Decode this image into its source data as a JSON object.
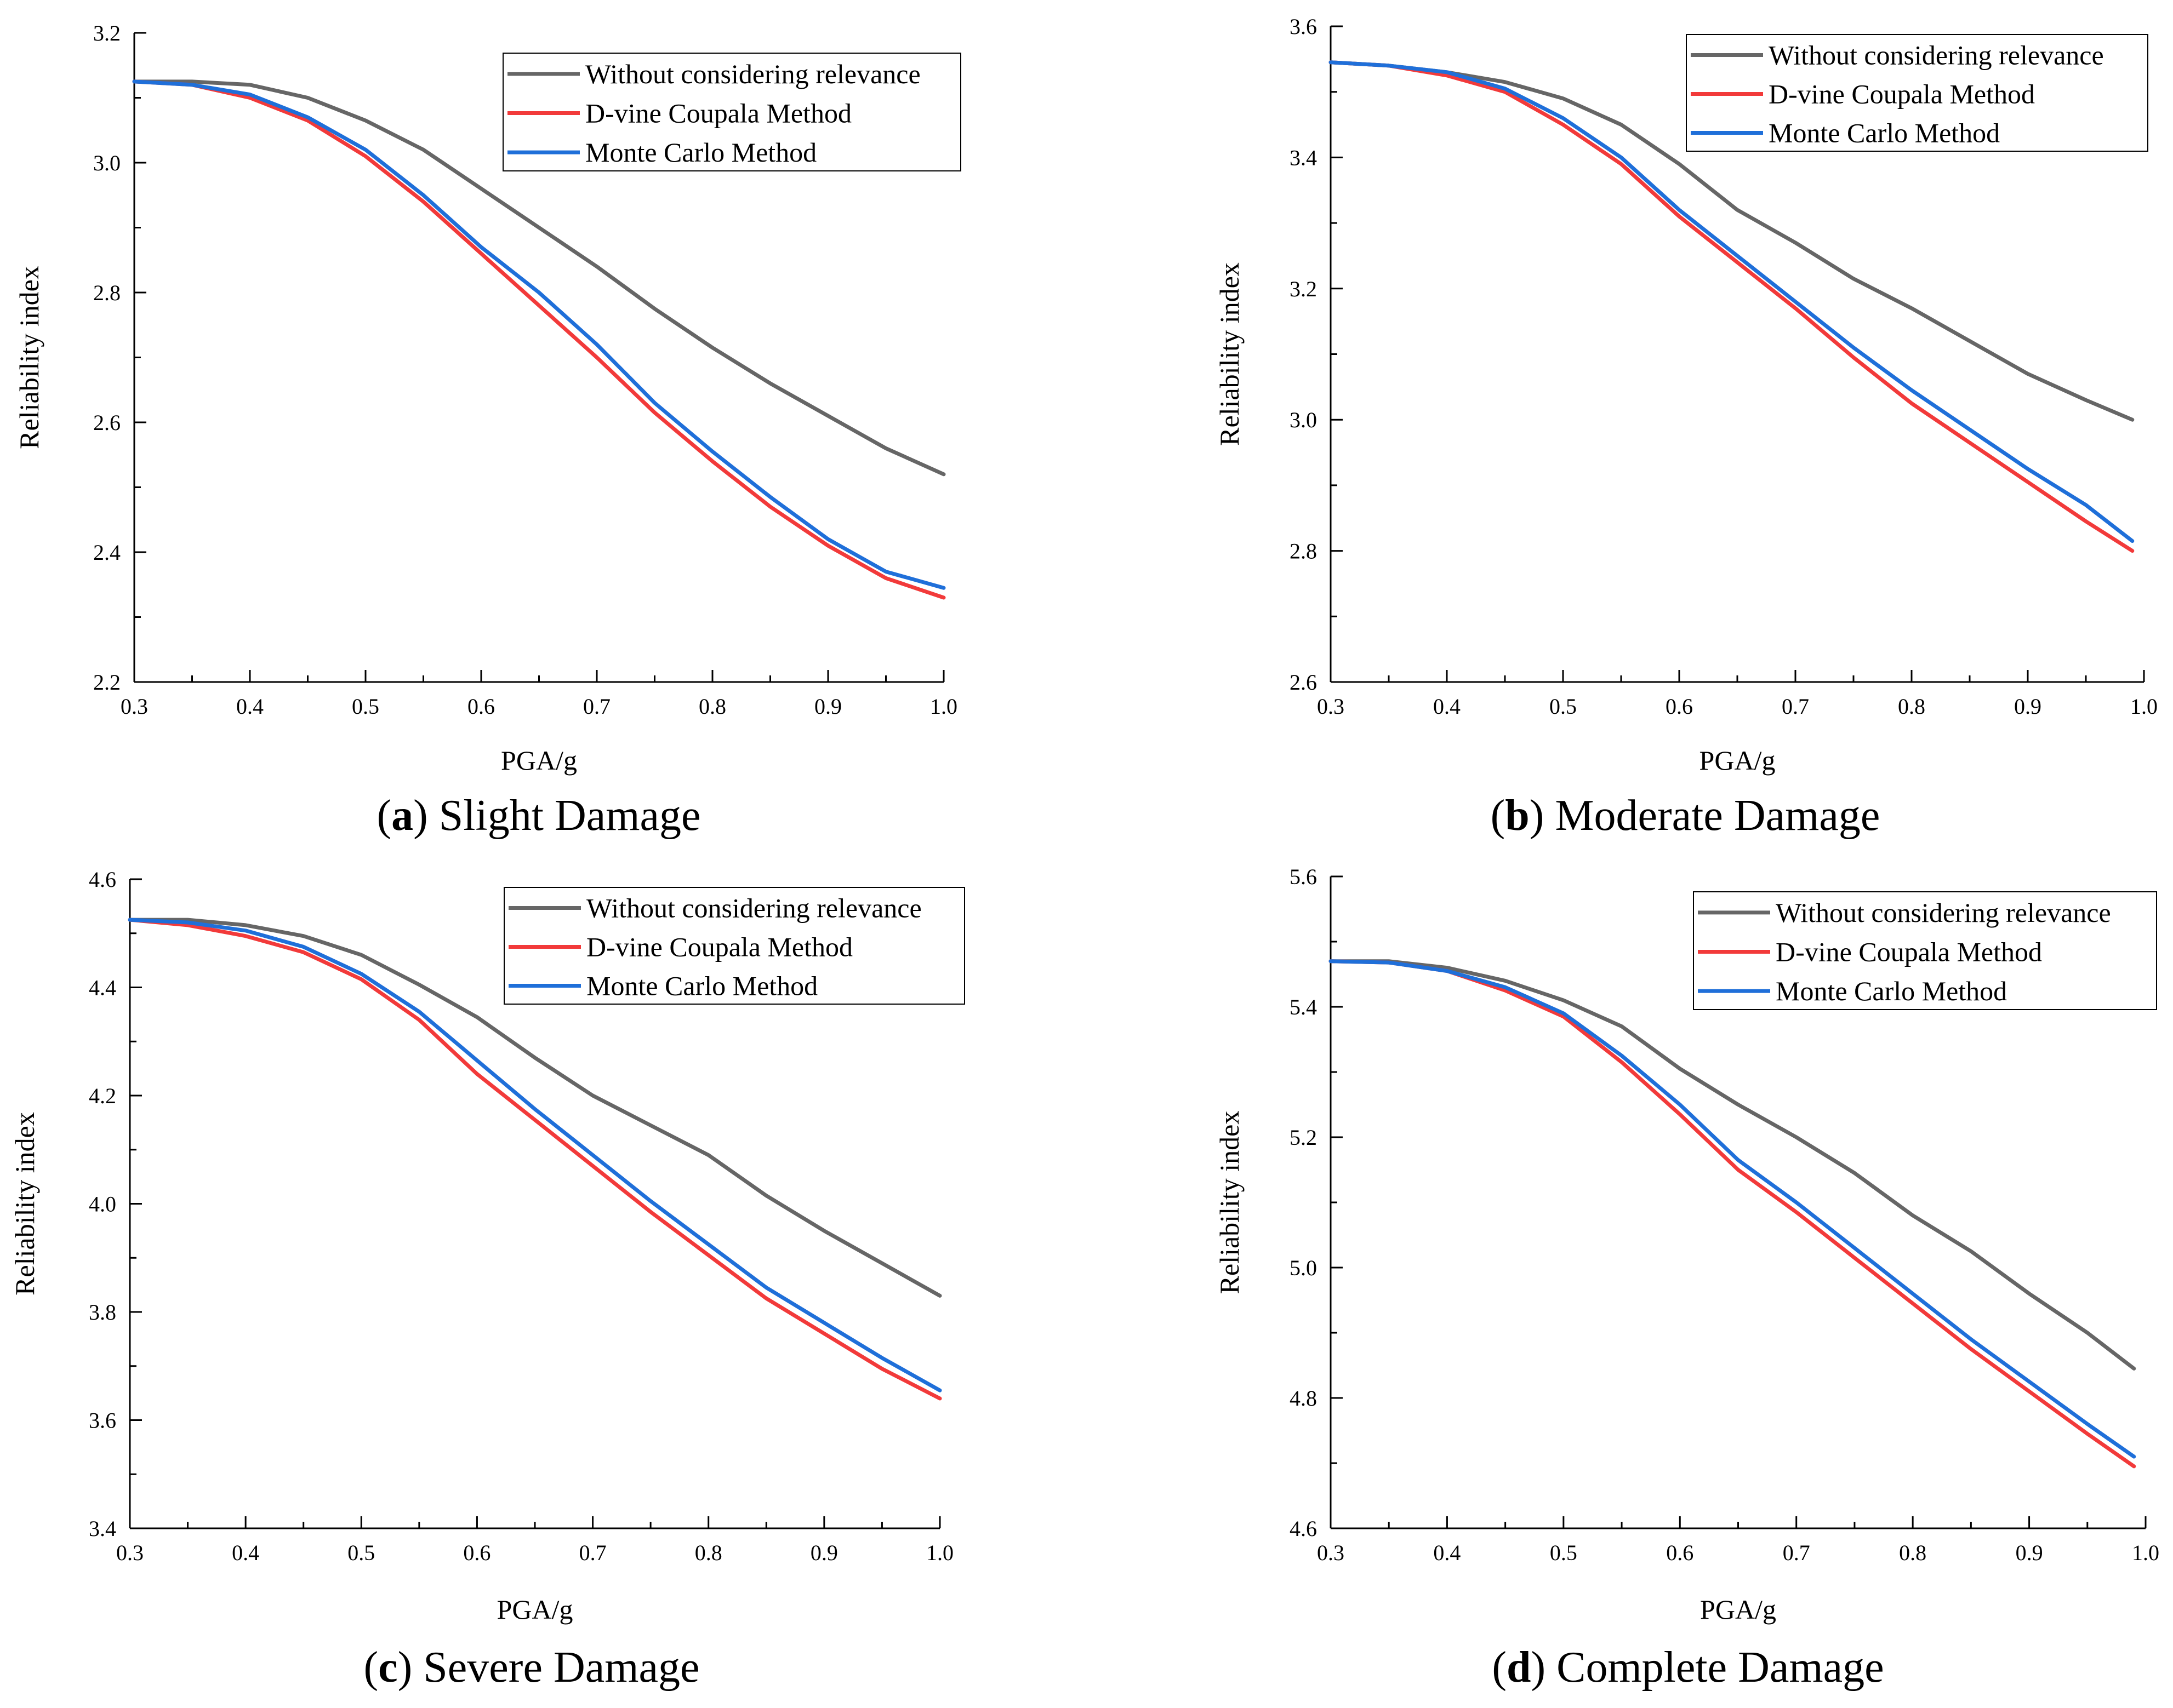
{
  "colors": {
    "without": "#666666",
    "dvine": "#f23a3a",
    "monte": "#1f6fd9",
    "axis": "#000000"
  },
  "figure": {
    "panels_count": 4
  },
  "chart_data": [
    {
      "type": "line",
      "caption_letter": "a",
      "caption_text": "Slight Damage",
      "xlabel": "PGA/g",
      "ylabel": "Reliability index",
      "xlim": [
        0.3,
        1.0
      ],
      "ylim": [
        2.2,
        3.2
      ],
      "xticks": [
        0.3,
        0.4,
        0.5,
        0.6,
        0.7,
        0.8,
        0.9,
        1.0
      ],
      "xtick_labels": [
        "0.3",
        "0.4",
        "0.5",
        "0.6",
        "0.7",
        "0.8",
        "0.9",
        "1.0"
      ],
      "yticks": [
        2.2,
        2.4,
        2.6,
        2.8,
        3.0,
        3.2
      ],
      "ytick_labels": [
        "2.2",
        "2.4",
        "2.6",
        "2.8",
        "3.0",
        "3.2"
      ],
      "legend_position": "top-right",
      "x": [
        0.3,
        0.35,
        0.4,
        0.45,
        0.5,
        0.55,
        0.6,
        0.65,
        0.7,
        0.75,
        0.8,
        0.85,
        0.9,
        0.95,
        1.0
      ],
      "series": [
        {
          "name": "Without considering relevance",
          "color_key": "without",
          "values": [
            3.125,
            3.125,
            3.12,
            3.1,
            3.065,
            3.02,
            2.96,
            2.9,
            2.84,
            2.775,
            2.715,
            2.66,
            2.61,
            2.56,
            2.52
          ]
        },
        {
          "name": "D-vine Coupala Method",
          "color_key": "dvine",
          "values": [
            3.125,
            3.12,
            3.1,
            3.065,
            3.01,
            2.94,
            2.86,
            2.78,
            2.7,
            2.615,
            2.54,
            2.47,
            2.41,
            2.36,
            2.33
          ]
        },
        {
          "name": "Monte Carlo Method",
          "color_key": "monte",
          "values": [
            3.125,
            3.12,
            3.105,
            3.07,
            3.02,
            2.95,
            2.87,
            2.8,
            2.72,
            2.63,
            2.555,
            2.485,
            2.42,
            2.37,
            2.345
          ]
        }
      ]
    },
    {
      "type": "line",
      "caption_letter": "b",
      "caption_text": "Moderate Damage",
      "xlabel": "PGA/g",
      "ylabel": "Reliability index",
      "xlim": [
        0.3,
        1.0
      ],
      "ylim": [
        2.6,
        3.6
      ],
      "xticks": [
        0.3,
        0.4,
        0.5,
        0.6,
        0.7,
        0.8,
        0.9,
        1.0
      ],
      "xtick_labels": [
        "0.3",
        "0.4",
        "0.5",
        "0.6",
        "0.7",
        "0.8",
        "0.9",
        "1.0"
      ],
      "yticks": [
        2.6,
        2.8,
        3.0,
        3.2,
        3.4,
        3.6
      ],
      "ytick_labels": [
        "2.6",
        "2.8",
        "3.0",
        "3.2",
        "3.4",
        "3.6"
      ],
      "legend_position": "top-right",
      "x": [
        0.3,
        0.35,
        0.4,
        0.45,
        0.5,
        0.55,
        0.6,
        0.65,
        0.7,
        0.75,
        0.8,
        0.85,
        0.9,
        0.95,
        0.99
      ],
      "series": [
        {
          "name": "Without considering relevance",
          "color_key": "without",
          "values": [
            3.545,
            3.54,
            3.53,
            3.515,
            3.49,
            3.45,
            3.39,
            3.32,
            3.27,
            3.215,
            3.17,
            3.12,
            3.07,
            3.03,
            3.0
          ]
        },
        {
          "name": "D-vine Coupala Method",
          "color_key": "dvine",
          "values": [
            3.545,
            3.54,
            3.525,
            3.5,
            3.45,
            3.39,
            3.31,
            3.24,
            3.17,
            3.095,
            3.025,
            2.965,
            2.905,
            2.845,
            2.8
          ]
        },
        {
          "name": "Monte Carlo Method",
          "color_key": "monte",
          "values": [
            3.545,
            3.54,
            3.53,
            3.505,
            3.46,
            3.4,
            3.32,
            3.25,
            3.18,
            3.11,
            3.045,
            2.985,
            2.925,
            2.87,
            2.815
          ]
        }
      ]
    },
    {
      "type": "line",
      "caption_letter": "c",
      "caption_text": "Severe Damage",
      "xlabel": "PGA/g",
      "ylabel": "Reliability index",
      "xlim": [
        0.3,
        1.0
      ],
      "ylim": [
        3.4,
        4.6
      ],
      "xticks": [
        0.3,
        0.4,
        0.5,
        0.6,
        0.7,
        0.8,
        0.9,
        1.0
      ],
      "xtick_labels": [
        "0.3",
        "0.4",
        "0.5",
        "0.6",
        "0.7",
        "0.8",
        "0.9",
        "1.0"
      ],
      "yticks": [
        3.4,
        3.6,
        3.8,
        4.0,
        4.2,
        4.4,
        4.6
      ],
      "ytick_labels": [
        "3.4",
        "3.6",
        "3.8",
        "4.0",
        "4.2",
        "4.4",
        "4.6"
      ],
      "legend_position": "top-right",
      "x": [
        0.3,
        0.35,
        0.4,
        0.45,
        0.5,
        0.55,
        0.6,
        0.65,
        0.7,
        0.75,
        0.8,
        0.85,
        0.9,
        0.95,
        1.0
      ],
      "series": [
        {
          "name": "Without considering relevance",
          "color_key": "without",
          "values": [
            4.525,
            4.525,
            4.515,
            4.495,
            4.46,
            4.405,
            4.345,
            4.27,
            4.2,
            4.145,
            4.09,
            4.015,
            3.95,
            3.89,
            3.83
          ]
        },
        {
          "name": "D-vine Coupala Method",
          "color_key": "dvine",
          "values": [
            4.525,
            4.515,
            4.495,
            4.465,
            4.415,
            4.34,
            4.24,
            4.155,
            4.07,
            3.985,
            3.905,
            3.825,
            3.76,
            3.695,
            3.64
          ]
        },
        {
          "name": "Monte Carlo Method",
          "color_key": "monte",
          "values": [
            4.525,
            4.52,
            4.505,
            4.475,
            4.425,
            4.355,
            4.265,
            4.175,
            4.09,
            4.005,
            3.925,
            3.845,
            3.78,
            3.715,
            3.655
          ]
        }
      ]
    },
    {
      "type": "line",
      "caption_letter": "d",
      "caption_text": "Complete Damage",
      "xlabel": "PGA/g",
      "ylabel": "Reliability index",
      "xlim": [
        0.3,
        1.0
      ],
      "ylim": [
        4.6,
        5.6
      ],
      "xticks": [
        0.3,
        0.4,
        0.5,
        0.6,
        0.7,
        0.8,
        0.9,
        1.0
      ],
      "xtick_labels": [
        "0.3",
        "0.4",
        "0.5",
        "0.6",
        "0.7",
        "0.8",
        "0.9",
        "1.0"
      ],
      "yticks": [
        4.6,
        4.8,
        5.0,
        5.2,
        5.4,
        5.6
      ],
      "ytick_labels": [
        "4.6",
        "4.8",
        "5.0",
        "5.2",
        "5.4",
        "5.6"
      ],
      "legend_position": "top-right",
      "x": [
        0.3,
        0.35,
        0.4,
        0.45,
        0.5,
        0.55,
        0.6,
        0.65,
        0.7,
        0.75,
        0.8,
        0.85,
        0.9,
        0.95,
        0.99
      ],
      "series": [
        {
          "name": "Without considering relevance",
          "color_key": "without",
          "values": [
            5.47,
            5.47,
            5.46,
            5.44,
            5.41,
            5.37,
            5.305,
            5.25,
            5.2,
            5.145,
            5.08,
            5.025,
            4.96,
            4.9,
            4.845
          ]
        },
        {
          "name": "D-vine Coupala Method",
          "color_key": "dvine",
          "values": [
            5.47,
            5.468,
            5.455,
            5.425,
            5.385,
            5.315,
            5.235,
            5.15,
            5.085,
            5.015,
            4.945,
            4.875,
            4.81,
            4.745,
            4.695
          ]
        },
        {
          "name": "Monte Carlo Method",
          "color_key": "monte",
          "values": [
            5.47,
            5.468,
            5.455,
            5.43,
            5.39,
            5.325,
            5.25,
            5.165,
            5.1,
            5.03,
            4.96,
            4.89,
            4.825,
            4.76,
            4.71
          ]
        }
      ]
    }
  ]
}
